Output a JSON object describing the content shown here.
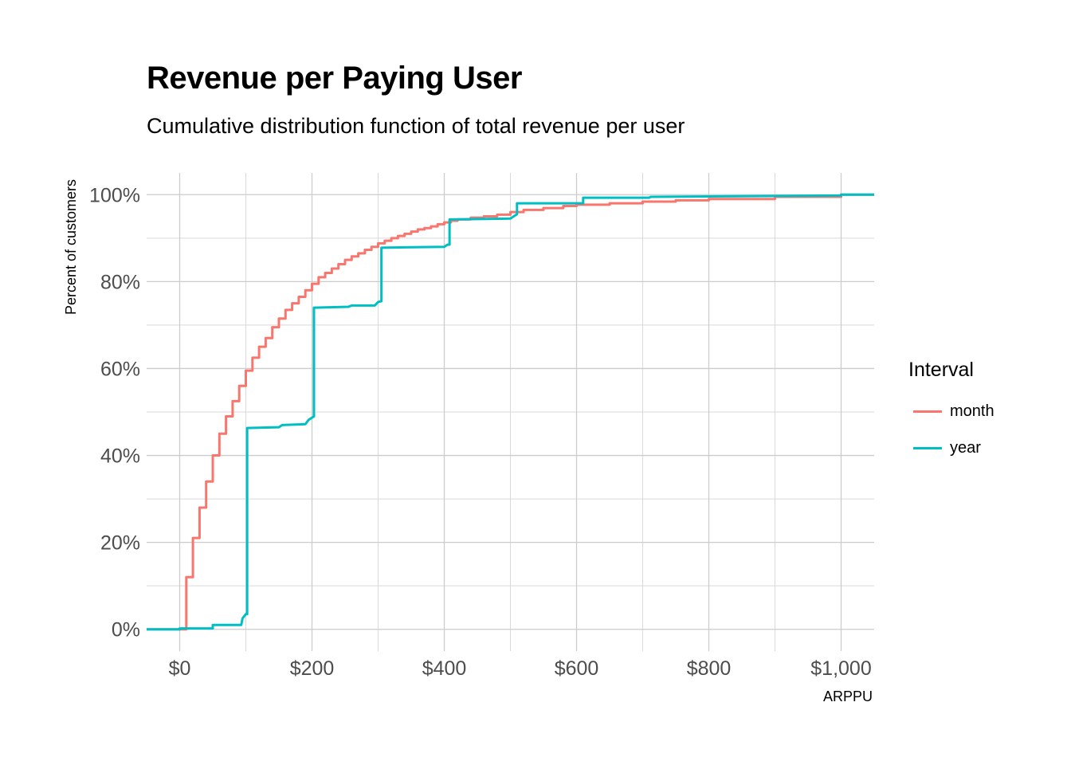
{
  "chart_data": {
    "type": "line",
    "title": "Revenue per Paying User",
    "subtitle": "Cumulative distribution function of total revenue per user",
    "xlabel": "ARPPU",
    "ylabel": "Percent of customers",
    "xlim": [
      -50,
      1050
    ],
    "ylim": [
      -5,
      105
    ],
    "x_ticks": [
      0,
      200,
      400,
      600,
      800,
      1000
    ],
    "x_tick_labels": [
      "$0",
      "$200",
      "$400",
      "$600",
      "$800",
      "$1,000"
    ],
    "y_ticks": [
      0,
      20,
      40,
      60,
      80,
      100
    ],
    "y_tick_labels": [
      "0%",
      "20%",
      "40%",
      "60%",
      "80%",
      "100%"
    ],
    "grid": true,
    "step": true,
    "legend": {
      "title": "Interval",
      "position": "right"
    },
    "series": [
      {
        "name": "month",
        "color": "#F8766D",
        "points": [
          [
            -50,
            0
          ],
          [
            10,
            0
          ],
          [
            10,
            12
          ],
          [
            20,
            12
          ],
          [
            20,
            21
          ],
          [
            30,
            21
          ],
          [
            30,
            28
          ],
          [
            40,
            28
          ],
          [
            40,
            34
          ],
          [
            50,
            34
          ],
          [
            50,
            40
          ],
          [
            60,
            40
          ],
          [
            60,
            45
          ],
          [
            70,
            45
          ],
          [
            70,
            49
          ],
          [
            80,
            49
          ],
          [
            80,
            52.5
          ],
          [
            90,
            52.5
          ],
          [
            90,
            56
          ],
          [
            100,
            56
          ],
          [
            100,
            59.5
          ],
          [
            110,
            59.5
          ],
          [
            110,
            62.5
          ],
          [
            120,
            62.5
          ],
          [
            120,
            65
          ],
          [
            130,
            65
          ],
          [
            130,
            67
          ],
          [
            140,
            67
          ],
          [
            140,
            69.5
          ],
          [
            150,
            69.5
          ],
          [
            150,
            71.5
          ],
          [
            160,
            71.5
          ],
          [
            160,
            73.5
          ],
          [
            170,
            73.5
          ],
          [
            170,
            75
          ],
          [
            180,
            75
          ],
          [
            180,
            76.5
          ],
          [
            190,
            76.5
          ],
          [
            190,
            78
          ],
          [
            200,
            78
          ],
          [
            200,
            79.5
          ],
          [
            210,
            79.5
          ],
          [
            210,
            81
          ],
          [
            220,
            81
          ],
          [
            220,
            82
          ],
          [
            230,
            82
          ],
          [
            230,
            83
          ],
          [
            240,
            83
          ],
          [
            240,
            84
          ],
          [
            250,
            84
          ],
          [
            250,
            85
          ],
          [
            260,
            85
          ],
          [
            260,
            85.8
          ],
          [
            270,
            85.8
          ],
          [
            270,
            86.5
          ],
          [
            280,
            86.5
          ],
          [
            280,
            87.3
          ],
          [
            290,
            87.3
          ],
          [
            290,
            88
          ],
          [
            300,
            88
          ],
          [
            300,
            88.8
          ],
          [
            310,
            88.8
          ],
          [
            310,
            89.4
          ],
          [
            320,
            89.4
          ],
          [
            320,
            90
          ],
          [
            330,
            90
          ],
          [
            330,
            90.5
          ],
          [
            340,
            90.5
          ],
          [
            340,
            91
          ],
          [
            350,
            91
          ],
          [
            350,
            91.5
          ],
          [
            360,
            91.5
          ],
          [
            360,
            92
          ],
          [
            370,
            92
          ],
          [
            370,
            92.3
          ],
          [
            380,
            92.3
          ],
          [
            380,
            92.7
          ],
          [
            390,
            92.7
          ],
          [
            390,
            93.2
          ],
          [
            400,
            93.2
          ],
          [
            400,
            93.6
          ],
          [
            410,
            93.6
          ],
          [
            410,
            94
          ],
          [
            420,
            94
          ],
          [
            420,
            94.3
          ],
          [
            440,
            94.3
          ],
          [
            440,
            94.7
          ],
          [
            460,
            94.7
          ],
          [
            460,
            95
          ],
          [
            480,
            95
          ],
          [
            480,
            95.4
          ],
          [
            500,
            95.4
          ],
          [
            500,
            96
          ],
          [
            520,
            96
          ],
          [
            520,
            96.5
          ],
          [
            550,
            96.5
          ],
          [
            550,
            96.9
          ],
          [
            580,
            96.9
          ],
          [
            580,
            97.4
          ],
          [
            600,
            97.4
          ],
          [
            600,
            97.7
          ],
          [
            650,
            97.7
          ],
          [
            650,
            98
          ],
          [
            700,
            98
          ],
          [
            700,
            98.4
          ],
          [
            750,
            98.4
          ],
          [
            750,
            98.7
          ],
          [
            800,
            98.7
          ],
          [
            800,
            99
          ],
          [
            900,
            99
          ],
          [
            900,
            99.5
          ],
          [
            1000,
            99.5
          ],
          [
            1000,
            100
          ],
          [
            1050,
            100
          ]
        ]
      },
      {
        "name": "year",
        "color": "#00BFC4",
        "points": [
          [
            -50,
            0
          ],
          [
            0,
            0
          ],
          [
            0,
            0.2
          ],
          [
            50,
            0.2
          ],
          [
            50,
            1
          ],
          [
            93,
            1
          ],
          [
            95,
            2.5
          ],
          [
            100,
            3.5
          ],
          [
            102,
            3.5
          ],
          [
            102,
            46.3
          ],
          [
            150,
            46.5
          ],
          [
            155,
            47
          ],
          [
            190,
            47.2
          ],
          [
            195,
            48.2
          ],
          [
            200,
            48.7
          ],
          [
            203,
            49
          ],
          [
            203,
            74
          ],
          [
            255,
            74.2
          ],
          [
            260,
            74.5
          ],
          [
            295,
            74.5
          ],
          [
            300,
            75.3
          ],
          [
            305,
            75.5
          ],
          [
            305,
            87.8
          ],
          [
            400,
            88
          ],
          [
            405,
            88.5
          ],
          [
            408,
            88.5
          ],
          [
            408,
            94.3
          ],
          [
            500,
            94.5
          ],
          [
            505,
            95
          ],
          [
            510,
            95.5
          ],
          [
            510,
            98
          ],
          [
            610,
            98
          ],
          [
            610,
            99.3
          ],
          [
            710,
            99.3
          ],
          [
            712,
            99.5
          ],
          [
            1000,
            99.8
          ],
          [
            1000,
            100
          ],
          [
            1050,
            100
          ]
        ]
      }
    ]
  }
}
